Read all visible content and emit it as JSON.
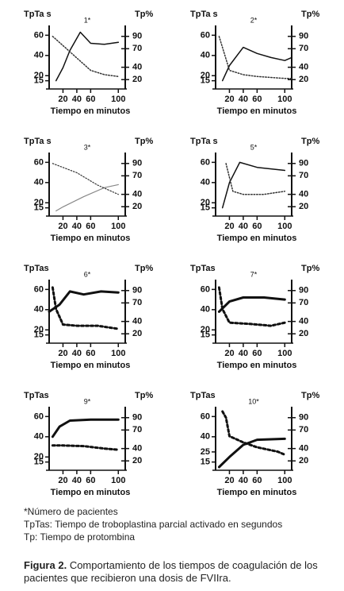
{
  "chart_data": [
    {
      "type": "line",
      "title": "1*",
      "ylabel": "TpTa s",
      "y2label": "Tp%",
      "xlabel": "Tiempo en minutos",
      "xlim": [
        0,
        110
      ],
      "xticks": [
        20,
        40,
        60,
        100
      ],
      "ylim": [
        10,
        65
      ],
      "yticks": [
        15,
        20,
        40,
        60
      ],
      "y2lim": [
        10,
        100
      ],
      "y2ticks": [
        20,
        40,
        70,
        90
      ],
      "line_width": 1.5,
      "series": [
        {
          "color": "#111111",
          "style": "solid",
          "x": [
            10,
            20,
            30,
            45,
            60,
            80,
            100
          ],
          "values": [
            15,
            28,
            45,
            63,
            52,
            51,
            53
          ]
        },
        {
          "color": "#333333",
          "style": "dotted",
          "axis": "y2",
          "x": [
            5,
            20,
            40,
            60,
            80,
            100
          ],
          "values": [
            90,
            75,
            55,
            35,
            28,
            25
          ]
        }
      ]
    },
    {
      "type": "line",
      "title": "2*",
      "ylabel": "TpTa s",
      "y2label": "Tp%",
      "xlabel": "Tiempo en minutos",
      "xlim": [
        0,
        110
      ],
      "xticks": [
        20,
        40,
        60,
        100
      ],
      "ylim": [
        10,
        65
      ],
      "yticks": [
        15,
        20,
        40,
        60
      ],
      "y2lim": [
        10,
        100
      ],
      "y2ticks": [
        20,
        40,
        70,
        90
      ],
      "line_width": 1.5,
      "series": [
        {
          "color": "#111111",
          "style": "solid",
          "x": [
            10,
            20,
            40,
            60,
            80,
            100,
            110
          ],
          "values": [
            15,
            30,
            48,
            42,
            38,
            35,
            38
          ]
        },
        {
          "color": "#333333",
          "style": "dotted",
          "axis": "y2",
          "x": [
            5,
            20,
            40,
            60,
            100,
            110
          ],
          "values": [
            90,
            35,
            28,
            25,
            22,
            22
          ]
        }
      ]
    },
    {
      "type": "line",
      "title": "3*",
      "ylabel": "TpTa s",
      "y2label": "Tp%",
      "xlabel": "Tiempo en minutos",
      "xlim": [
        0,
        110
      ],
      "xticks": [
        20,
        40,
        60,
        100
      ],
      "ylim": [
        10,
        65
      ],
      "yticks": [
        15,
        20,
        40,
        60
      ],
      "y2lim": [
        10,
        100
      ],
      "y2ticks": [
        20,
        40,
        70,
        90
      ],
      "line_width": 1.2,
      "series": [
        {
          "color": "#888888",
          "style": "solid",
          "x": [
            10,
            20,
            50,
            80,
            100
          ],
          "values": [
            12,
            16,
            26,
            35,
            38
          ]
        },
        {
          "color": "#333333",
          "style": "dotted",
          "axis": "y2",
          "x": [
            5,
            40,
            70,
            100
          ],
          "values": [
            90,
            75,
            55,
            40
          ]
        }
      ]
    },
    {
      "type": "line",
      "title": "5*",
      "ylabel": "TpTa s",
      "y2label": "Tp%",
      "xlabel": "Tiempo en minutos",
      "xlim": [
        0,
        110
      ],
      "xticks": [
        20,
        40,
        60,
        100
      ],
      "ylim": [
        10,
        65
      ],
      "yticks": [
        15,
        20,
        40,
        60
      ],
      "y2lim": [
        10,
        100
      ],
      "y2ticks": [
        20,
        40,
        70,
        90
      ],
      "line_width": 1.5,
      "series": [
        {
          "color": "#111111",
          "style": "solid",
          "x": [
            10,
            20,
            35,
            60,
            100
          ],
          "values": [
            15,
            40,
            60,
            55,
            52
          ]
        },
        {
          "color": "#333333",
          "style": "dotted",
          "axis": "y2",
          "x": [
            15,
            25,
            40,
            70,
            100
          ],
          "values": [
            90,
            45,
            40,
            40,
            45
          ]
        }
      ]
    },
    {
      "type": "line",
      "title": "6*",
      "ylabel": "TpTas",
      "y2label": "Tp%",
      "xlabel": "Tiempo en minutos",
      "xlim": [
        0,
        110
      ],
      "xticks": [
        20,
        40,
        60,
        100
      ],
      "ylim": [
        10,
        65
      ],
      "yticks": [
        15,
        20,
        40,
        60
      ],
      "y2lim": [
        10,
        100
      ],
      "y2ticks": [
        20,
        40,
        70,
        90
      ],
      "line_width": 3,
      "series": [
        {
          "color": "#111111",
          "style": "solid",
          "x": [
            0,
            15,
            30,
            50,
            75,
            100
          ],
          "values": [
            38,
            45,
            58,
            55,
            58,
            57
          ]
        },
        {
          "color": "#111111",
          "style": "dotted",
          "axis": "y2",
          "x": [
            5,
            10,
            20,
            40,
            70,
            100
          ],
          "values": [
            95,
            60,
            35,
            33,
            33,
            28
          ]
        }
      ]
    },
    {
      "type": "line",
      "title": "7*",
      "ylabel": "TpTas",
      "y2label": "Tp%",
      "xlabel": "Tiempo en minutos",
      "xlim": [
        0,
        110
      ],
      "xticks": [
        20,
        40,
        60,
        100
      ],
      "ylim": [
        10,
        65
      ],
      "yticks": [
        15,
        20,
        40,
        60
      ],
      "y2lim": [
        10,
        100
      ],
      "y2ticks": [
        20,
        40,
        70,
        90
      ],
      "line_width": 3,
      "series": [
        {
          "color": "#111111",
          "style": "solid",
          "x": [
            5,
            20,
            40,
            70,
            100
          ],
          "values": [
            38,
            48,
            52,
            52,
            50
          ]
        },
        {
          "color": "#111111",
          "style": "dotted",
          "axis": "y2",
          "x": [
            5,
            10,
            20,
            50,
            80,
            100
          ],
          "values": [
            95,
            60,
            38,
            36,
            33,
            38
          ]
        }
      ]
    },
    {
      "type": "line",
      "title": "9*",
      "ylabel": "TpTas",
      "y2label": "Tp%",
      "xlabel": "Tiempo en minutos",
      "xlim": [
        0,
        110
      ],
      "xticks": [
        20,
        40,
        60,
        100
      ],
      "ylim": [
        10,
        65
      ],
      "yticks": [
        15,
        20,
        40,
        60
      ],
      "y2lim": [
        10,
        100
      ],
      "y2ticks": [
        20,
        40,
        70,
        90
      ],
      "line_width": 3,
      "series": [
        {
          "color": "#111111",
          "style": "solid",
          "x": [
            5,
            15,
            30,
            60,
            100
          ],
          "values": [
            40,
            50,
            56,
            57,
            57
          ]
        },
        {
          "color": "#111111",
          "style": "dotted",
          "axis": "y2",
          "x": [
            5,
            20,
            50,
            80,
            100
          ],
          "values": [
            45,
            45,
            44,
            40,
            38
          ]
        }
      ]
    },
    {
      "type": "line",
      "title": "10*",
      "ylabel": "TpTas",
      "y2label": "Tp%",
      "xlabel": "Tiempo en minutos",
      "xlim": [
        0,
        110
      ],
      "xticks": [
        20,
        40,
        60,
        100
      ],
      "ylim": [
        10,
        65
      ],
      "yticks": [
        15,
        25,
        40,
        60
      ],
      "y2lim": [
        10,
        100
      ],
      "y2ticks": [
        20,
        40,
        70,
        90
      ],
      "line_width": 3,
      "series": [
        {
          "color": "#111111",
          "style": "solid",
          "x": [
            5,
            20,
            40,
            60,
            100
          ],
          "values": [
            10,
            20,
            32,
            37,
            38
          ]
        },
        {
          "color": "#111111",
          "style": "dotted",
          "axis": "y2",
          "x": [
            10,
            15,
            20,
            40,
            60,
            90,
            100
          ],
          "values": [
            100,
            90,
            60,
            50,
            42,
            35,
            30
          ]
        }
      ]
    }
  ],
  "notes": [
    "*Número de pacientes",
    "TpTas: Tiempo de troboplastina parcial activado en segundos",
    "Tp: Tiempo de protombina"
  ],
  "caption": {
    "label": "Figura 2.",
    "text": "Comportamiento de los tiempos de coagulación de los pacientes que recibieron una dosis de FVIIra."
  }
}
